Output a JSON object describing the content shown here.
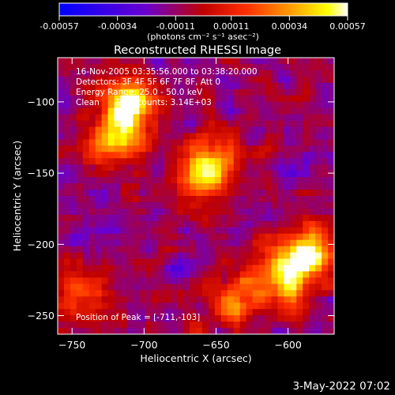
{
  "chart_data": {
    "type": "heatmap",
    "title": "Reconstructed RHESSI Image",
    "xlabel": "Heliocentric X (arcsec)",
    "ylabel": "Heliocentric Y (arcsec)",
    "xlim": [
      -760,
      -568
    ],
    "ylim": [
      -263,
      -69
    ],
    "xticks": [
      -750,
      -700,
      -650,
      -600
    ],
    "yticks": [
      -250,
      -200,
      -150,
      -100
    ],
    "colorbar": {
      "ticks": [
        "-0.00057",
        "-0.00034",
        "-0.00011",
        "0.00011",
        "0.00034",
        "0.00057"
      ],
      "tick_values": [
        -0.00057,
        -0.00034,
        -0.00011,
        0.00011,
        0.00034,
        0.00057
      ],
      "unit_label": "(photons cm⁻² s⁻¹ asec⁻²)",
      "range": [
        -0.00057,
        0.00057
      ],
      "colormap": [
        "#0000ff",
        "#6a00d0",
        "#ff0000",
        "#ff8000",
        "#ffff00",
        "#ffffff"
      ]
    },
    "sources": [
      {
        "x": -711,
        "y": -103,
        "rel_intensity": 1.0
      },
      {
        "x": -655,
        "y": -147,
        "rel_intensity": 0.95
      },
      {
        "x": -585,
        "y": -205,
        "rel_intensity": 0.9
      },
      {
        "x": -604,
        "y": -225,
        "rel_intensity": 0.85
      },
      {
        "x": -720,
        "y": -128,
        "rel_intensity": 0.7
      },
      {
        "x": -640,
        "y": -240,
        "rel_intensity": 0.55
      },
      {
        "x": -745,
        "y": -235,
        "rel_intensity": 0.5
      }
    ],
    "peak": {
      "x": -711,
      "y": -103
    }
  },
  "info": {
    "time": "16-Nov-2005 03:35:56.000 to 03:38:20.000",
    "detectors": "Detectors: 3F 4F 5F 6F 7F 8F, Att 0",
    "energy": "Energy Range: 25.0 - 50.0 keV",
    "clean": "Clean      Total counts: 3.14E+03",
    "peak_text": "Position of Peak = [-711,-103]"
  },
  "footer": {
    "date": "3-May-2022 07:02"
  }
}
